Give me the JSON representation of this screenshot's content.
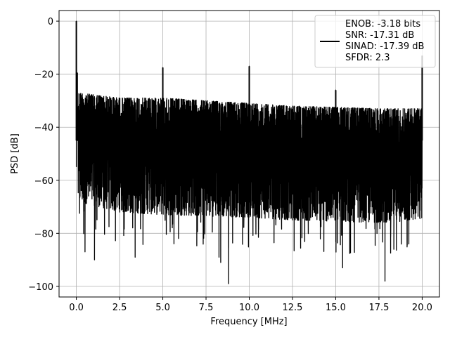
{
  "chart_data": {
    "type": "line",
    "title": "",
    "xlabel": "Frequency [MHz]",
    "ylabel": "PSD [dB]",
    "xlim": [
      -1.0,
      21.0
    ],
    "ylim": [
      -104.0,
      4.0
    ],
    "xticks": [
      0.0,
      2.5,
      5.0,
      7.5,
      10.0,
      12.5,
      15.0,
      17.5,
      20.0
    ],
    "xtick_labels": [
      "0.0",
      "2.5",
      "5.0",
      "7.5",
      "10.0",
      "12.5",
      "15.0",
      "17.5",
      "20.0"
    ],
    "yticks": [
      0,
      -20,
      -40,
      -60,
      -80,
      -100
    ],
    "ytick_labels": [
      "0",
      "−20",
      "−40",
      "−60",
      "−80",
      "−100"
    ],
    "grid": true,
    "legend_position": "upper right",
    "legend": {
      "lines": [
        "ENOB: -3.18 bits",
        "SNR: -17.31 dB",
        "SINAD: -17.39 dB",
        "SFDR: 2.3"
      ]
    },
    "series": [
      {
        "color": "#000000",
        "noise_floor": {
          "upper_envelope": [
            [
              0.1,
              -27
            ],
            [
              2.5,
              -29
            ],
            [
              5,
              -29
            ],
            [
              10,
              -31
            ],
            [
              12.5,
              -32
            ],
            [
              17.5,
              -33
            ],
            [
              20,
              -33
            ]
          ],
          "lower_envelope": [
            [
              0.1,
              -68
            ],
            [
              2.5,
              -72
            ],
            [
              5,
              -73
            ],
            [
              10,
              -74
            ],
            [
              12.5,
              -75
            ],
            [
              17.5,
              -76
            ],
            [
              20,
              -75
            ]
          ],
          "deepest_dips": [
            [
              0.5,
              -87
            ],
            [
              1.05,
              -90
            ],
            [
              3.4,
              -89
            ],
            [
              8.25,
              -89
            ],
            [
              8.35,
              -91
            ],
            [
              8.8,
              -99
            ],
            [
              15.4,
              -93
            ],
            [
              17.85,
              -98
            ]
          ]
        },
        "peaks": [
          {
            "x": 0.0,
            "y": 0.0
          },
          {
            "x": 0.05,
            "y": -19.5
          },
          {
            "x": 5.0,
            "y": -17.5
          },
          {
            "x": 10.0,
            "y": -17.0
          },
          {
            "x": 15.0,
            "y": -26.0
          },
          {
            "x": 20.0,
            "y": -13.0
          }
        ]
      }
    ]
  }
}
